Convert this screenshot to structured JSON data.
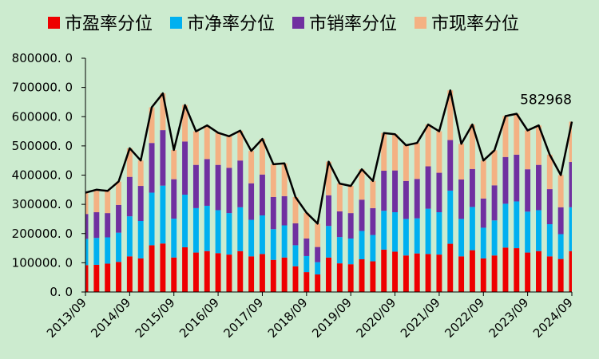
{
  "chart_data": {
    "type": "bar",
    "stacked": true,
    "series": [
      {
        "name": "市盈率分位",
        "color": "#EE0000",
        "values": [
          92000,
          93000,
          97000,
          103000,
          122000,
          115000,
          160000,
          166000,
          118000,
          153000,
          135000,
          140000,
          133000,
          128000,
          140000,
          122000,
          130000,
          110000,
          118000,
          88000,
          68000,
          60000,
          118000,
          98000,
          95000,
          112000,
          105000,
          145000,
          138000,
          125000,
          132000,
          130000,
          128000,
          165000,
          122000,
          143000,
          115000,
          125000,
          152000,
          150000,
          135000,
          140000,
          122000,
          113000,
          140000
        ]
      },
      {
        "name": "市净率分位",
        "color": "#00B0F0",
        "values": [
          90000,
          92000,
          90000,
          100000,
          137000,
          128000,
          180000,
          198000,
          133000,
          180000,
          152000,
          155000,
          147000,
          142000,
          150000,
          125000,
          132000,
          105000,
          110000,
          72000,
          55000,
          42000,
          108000,
          90000,
          88000,
          97000,
          90000,
          133000,
          135000,
          125000,
          120000,
          155000,
          145000,
          182000,
          128000,
          148000,
          105000,
          120000,
          150000,
          160000,
          140000,
          140000,
          110000,
          85000,
          150000
        ]
      },
      {
        "name": "市销率分位",
        "color": "#7030A0",
        "values": [
          85000,
          88000,
          83000,
          95000,
          135000,
          120000,
          170000,
          190000,
          135000,
          182000,
          148000,
          160000,
          155000,
          155000,
          160000,
          125000,
          140000,
          110000,
          100000,
          75000,
          60000,
          52000,
          105000,
          88000,
          87000,
          107000,
          92000,
          137000,
          143000,
          130000,
          135000,
          145000,
          135000,
          173000,
          135000,
          130000,
          100000,
          120000,
          160000,
          160000,
          145000,
          155000,
          120000,
          92000,
          155000
        ]
      },
      {
        "name": "市现率分位",
        "color": "#F4B183",
        "values": [
          73000,
          77000,
          76000,
          80000,
          98000,
          87000,
          122000,
          126000,
          100000,
          125000,
          115000,
          115000,
          110000,
          108000,
          102000,
          111000,
          122000,
          112000,
          112000,
          90000,
          88000,
          80000,
          115000,
          95000,
          93000,
          104000,
          93000,
          129000,
          124000,
          122000,
          123000,
          143000,
          142000,
          170000,
          122000,
          152000,
          130000,
          120000,
          140000,
          140000,
          133000,
          135000,
          118000,
          110000,
          138000
        ]
      }
    ],
    "total_line": {
      "color": "#000000",
      "values": [
        340000,
        350000,
        346000,
        378000,
        492000,
        450000,
        632000,
        680000,
        486000,
        640000,
        550000,
        570000,
        545000,
        533000,
        552000,
        483000,
        524000,
        437000,
        440000,
        325000,
        271000,
        234000,
        446000,
        371000,
        363000,
        420000,
        380000,
        544000,
        540000,
        502000,
        510000,
        573000,
        550000,
        690000,
        507000,
        573000,
        450000,
        485000,
        602000,
        610000,
        553000,
        570000,
        470000,
        400000,
        582968
      ]
    },
    "annotation": "582968",
    "x_tick_labels": [
      "2013/09",
      "2014/09",
      "2015/09",
      "2016/09",
      "2017/09",
      "2018/09",
      "2019/09",
      "2020/09",
      "2021/09",
      "2022/09",
      "2023/09",
      "2024/09"
    ],
    "y_tick_labels": [
      "0. 0",
      "100000. 0",
      "200000. 0",
      "300000. 0",
      "400000. 0",
      "500000. 0",
      "600000. 0",
      "700000. 0",
      "800000. 0"
    ],
    "ylim": [
      0,
      800000
    ],
    "legend_position": "top",
    "grid": false
  }
}
